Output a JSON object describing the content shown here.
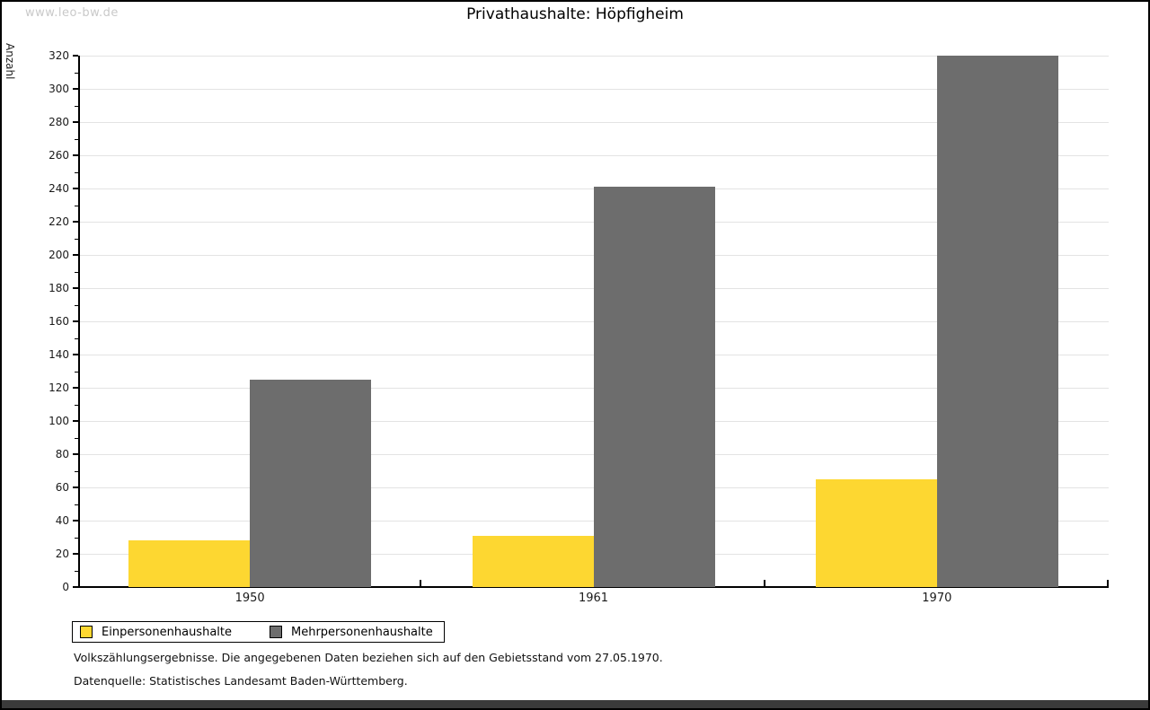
{
  "watermark": "www.leo-bw.de",
  "title": "Privathaushalte: Höpfigheim",
  "chart_data": {
    "type": "bar",
    "title": "Privathaushalte: Höpfigheim",
    "categories": [
      "1950",
      "1961",
      "1970"
    ],
    "series": [
      {
        "name": "Einpersonenhaushalte",
        "color": "#FDD731",
        "values": [
          28,
          31,
          65
        ]
      },
      {
        "name": "Mehrpersonenhaushalte",
        "color": "#6D6D6D",
        "values": [
          125,
          241,
          320
        ]
      }
    ],
    "xlabel": "",
    "ylabel": "Anzahl",
    "ylim": [
      0,
      320
    ],
    "ytick_step": 20,
    "yminor_step": 10,
    "grid": "horizontal-major",
    "legend_position": "bottom-left"
  },
  "footnotes": {
    "line1": "Volkszählungsergebnisse. Die angegebenen Daten beziehen sich auf den Gebietsstand vom 27.05.1970.",
    "line2": "Datenquelle: Statistisches Landesamt Baden-Württemberg."
  },
  "colors": {
    "series1": "#FDD731",
    "series2": "#6D6D6D",
    "gridline": "#e3e3e3",
    "axis": "#000000",
    "watermark": "#c9c9c9",
    "bottom_bar": "#3a3a3a"
  }
}
